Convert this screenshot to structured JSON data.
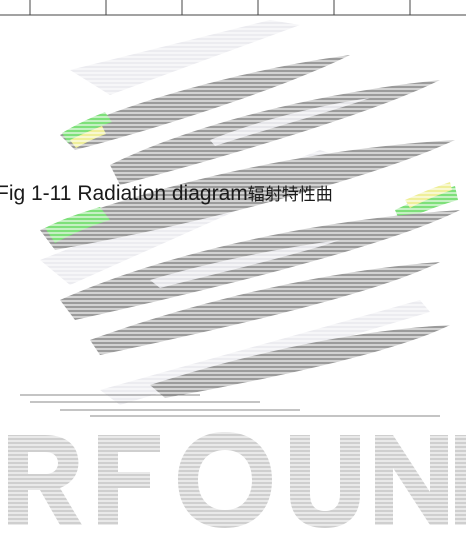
{
  "caption": {
    "latin": "Fig 1-11 Radiation diagram",
    "cjk": "辐射特性曲"
  },
  "watermark": {
    "text": "RFOUND"
  },
  "colors": {
    "background": "#ffffff",
    "blade_gray": "#9b9b9b",
    "blade_light": "#e6e6ea",
    "accent_green": "#7ee07a",
    "accent_yellow": "#efef9a",
    "text": "#1a1a1a"
  }
}
